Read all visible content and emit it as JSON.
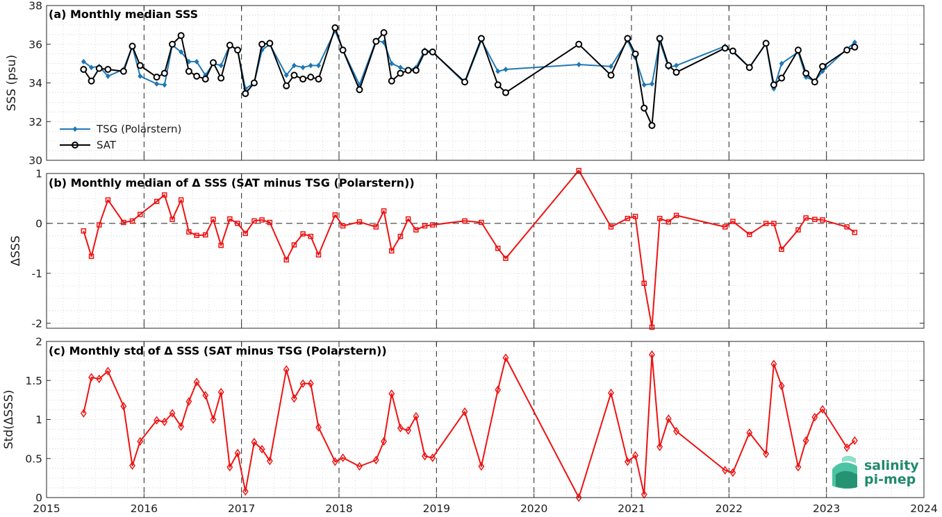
{
  "chart_data": [
    {
      "type": "line",
      "title": "(a) Monthly median SSS",
      "xlabel": "",
      "ylabel": "SSS (psu)",
      "xlim": [
        2015,
        2024
      ],
      "ylim": [
        30,
        38
      ],
      "xticks": [
        2015,
        2016,
        2017,
        2018,
        2019,
        2020,
        2021,
        2022,
        2023,
        2024
      ],
      "yticks": [
        30,
        32,
        34,
        36,
        38
      ],
      "grid": "dotted",
      "legend": "bottom-left",
      "series": [
        {
          "name": "TSG (Polarstern)",
          "color": "#1f77b4",
          "marker": "diamond-filled",
          "x": [
            2015.38,
            2015.46,
            2015.54,
            2015.63,
            2015.79,
            2015.88,
            2015.96,
            2016.13,
            2016.21,
            2016.29,
            2016.38,
            2016.46,
            2016.54,
            2016.63,
            2016.71,
            2016.79,
            2016.88,
            2016.96,
            2017.04,
            2017.13,
            2017.21,
            2017.29,
            2017.46,
            2017.54,
            2017.63,
            2017.71,
            2017.79,
            2017.96,
            2018.04,
            2018.21,
            2018.38,
            2018.46,
            2018.54,
            2018.63,
            2018.71,
            2018.79,
            2018.88,
            2018.96,
            2019.29,
            2019.46,
            2019.63,
            2019.71,
            2020.46,
            2020.79,
            2020.96,
            2021.04,
            2021.13,
            2021.21,
            2021.29,
            2021.38,
            2021.46,
            2021.96,
            2022.04,
            2022.21,
            2022.38,
            2022.46,
            2022.54,
            2022.71,
            2022.79,
            2022.88,
            2022.96,
            2023.21,
            2023.29
          ],
          "y": [
            35.1,
            34.8,
            34.85,
            34.35,
            34.7,
            35.9,
            34.35,
            33.95,
            33.9,
            35.95,
            35.6,
            35.1,
            35.1,
            34.4,
            35.0,
            34.9,
            35.95,
            35.7,
            33.7,
            34.0,
            35.7,
            36.0,
            34.4,
            34.9,
            34.8,
            34.9,
            34.9,
            36.7,
            35.7,
            33.9,
            36.2,
            36.1,
            35.0,
            34.8,
            34.65,
            34.8,
            35.7,
            35.6,
            34.0,
            36.2,
            34.6,
            34.7,
            34.95,
            34.85,
            36.2,
            35.3,
            33.9,
            33.95,
            36.15,
            34.8,
            34.9,
            35.9,
            35.6,
            34.8,
            36.05,
            33.7,
            35.0,
            35.6,
            34.3,
            34.1,
            34.6,
            35.75,
            36.1
          ]
        },
        {
          "name": "SAT",
          "color": "#000000",
          "marker": "circle-open",
          "x": [
            2015.38,
            2015.46,
            2015.54,
            2015.63,
            2015.79,
            2015.88,
            2015.96,
            2016.13,
            2016.21,
            2016.29,
            2016.38,
            2016.46,
            2016.54,
            2016.63,
            2016.71,
            2016.79,
            2016.88,
            2016.96,
            2017.04,
            2017.13,
            2017.21,
            2017.29,
            2017.46,
            2017.54,
            2017.63,
            2017.71,
            2017.79,
            2017.96,
            2018.04,
            2018.21,
            2018.38,
            2018.46,
            2018.54,
            2018.63,
            2018.71,
            2018.79,
            2018.88,
            2018.96,
            2019.29,
            2019.46,
            2019.63,
            2019.71,
            2020.46,
            2020.79,
            2020.96,
            2021.04,
            2021.13,
            2021.21,
            2021.29,
            2021.38,
            2021.46,
            2021.96,
            2022.04,
            2022.21,
            2022.38,
            2022.46,
            2022.54,
            2022.71,
            2022.79,
            2022.88,
            2022.96,
            2023.21,
            2023.29
          ],
          "y": [
            34.7,
            34.1,
            34.75,
            34.7,
            34.6,
            35.9,
            34.9,
            34.3,
            34.5,
            36.0,
            36.45,
            34.6,
            34.35,
            34.2,
            35.05,
            34.25,
            35.95,
            35.7,
            33.45,
            34.0,
            36.0,
            36.05,
            33.85,
            34.4,
            34.2,
            34.3,
            34.2,
            36.85,
            35.7,
            33.65,
            36.15,
            36.6,
            34.1,
            34.5,
            34.65,
            34.65,
            35.6,
            35.6,
            34.05,
            36.3,
            33.9,
            33.5,
            36.0,
            34.4,
            36.3,
            35.5,
            32.7,
            31.8,
            36.3,
            34.9,
            34.55,
            35.8,
            35.65,
            34.8,
            36.05,
            33.9,
            34.25,
            35.7,
            34.5,
            34.05,
            34.85,
            35.7,
            35.85
          ]
        }
      ]
    },
    {
      "type": "line",
      "title": "(b) Monthly median of Δ SSS (SAT minus TSG (Polarstern))",
      "xlabel": "",
      "ylabel": "ΔSSS",
      "xlim": [
        2015,
        2024
      ],
      "ylim": [
        -2.1,
        1.0
      ],
      "xticks": [
        2015,
        2016,
        2017,
        2018,
        2019,
        2020,
        2021,
        2022,
        2023,
        2024
      ],
      "yticks": [
        -2,
        -1,
        0,
        1
      ],
      "grid": "dotted",
      "zero_line": "dashed",
      "series": [
        {
          "color": "#ee1111",
          "marker": "square-open",
          "x": [
            2015.38,
            2015.46,
            2015.54,
            2015.63,
            2015.79,
            2015.88,
            2015.96,
            2016.13,
            2016.21,
            2016.29,
            2016.38,
            2016.46,
            2016.54,
            2016.63,
            2016.71,
            2016.79,
            2016.88,
            2016.96,
            2017.04,
            2017.13,
            2017.21,
            2017.29,
            2017.46,
            2017.54,
            2017.63,
            2017.71,
            2017.79,
            2017.96,
            2018.04,
            2018.21,
            2018.38,
            2018.46,
            2018.54,
            2018.63,
            2018.71,
            2018.79,
            2018.88,
            2018.96,
            2019.29,
            2019.46,
            2019.63,
            2019.71,
            2020.46,
            2020.79,
            2020.96,
            2021.04,
            2021.13,
            2021.21,
            2021.29,
            2021.38,
            2021.46,
            2021.96,
            2022.04,
            2022.21,
            2022.38,
            2022.46,
            2022.54,
            2022.71,
            2022.79,
            2022.88,
            2022.96,
            2023.21,
            2023.29
          ],
          "y": [
            -0.15,
            -0.66,
            -0.03,
            0.47,
            0.02,
            0.05,
            0.18,
            0.44,
            0.57,
            0.08,
            0.47,
            -0.17,
            -0.24,
            -0.23,
            0.08,
            -0.44,
            0.09,
            0.0,
            -0.2,
            0.05,
            0.07,
            0.02,
            -0.73,
            -0.43,
            -0.21,
            -0.26,
            -0.63,
            0.17,
            -0.05,
            0.03,
            -0.07,
            0.25,
            -0.55,
            -0.26,
            0.09,
            -0.13,
            -0.05,
            -0.03,
            0.05,
            0.02,
            -0.5,
            -0.7,
            1.06,
            -0.07,
            0.1,
            0.14,
            -1.2,
            -2.08,
            0.1,
            0.03,
            0.16,
            -0.07,
            0.04,
            -0.22,
            0.0,
            0.0,
            -0.52,
            -0.13,
            0.11,
            0.08,
            0.07,
            -0.07,
            -0.18
          ]
        }
      ]
    },
    {
      "type": "line",
      "title": "(c) Monthly std of Δ SSS (SAT minus TSG (Polarstern))",
      "xlabel": "",
      "ylabel": "Std(ΔSSS)",
      "xlim": [
        2015,
        2024
      ],
      "ylim": [
        0,
        2
      ],
      "xticks": [
        2015,
        2016,
        2017,
        2018,
        2019,
        2020,
        2021,
        2022,
        2023,
        2024
      ],
      "yticks": [
        0,
        0.5,
        1,
        1.5,
        2
      ],
      "grid": "dotted",
      "series": [
        {
          "color": "#ee1111",
          "marker": "diamond-open",
          "x": [
            2015.38,
            2015.46,
            2015.54,
            2015.63,
            2015.79,
            2015.88,
            2015.96,
            2016.13,
            2016.21,
            2016.29,
            2016.38,
            2016.46,
            2016.54,
            2016.63,
            2016.71,
            2016.79,
            2016.88,
            2016.96,
            2017.04,
            2017.13,
            2017.21,
            2017.29,
            2017.46,
            2017.54,
            2017.63,
            2017.71,
            2017.79,
            2017.96,
            2018.04,
            2018.21,
            2018.38,
            2018.46,
            2018.54,
            2018.63,
            2018.71,
            2018.79,
            2018.88,
            2018.96,
            2019.29,
            2019.46,
            2019.63,
            2019.71,
            2020.46,
            2020.79,
            2020.96,
            2021.04,
            2021.13,
            2021.21,
            2021.29,
            2021.38,
            2021.46,
            2021.96,
            2022.04,
            2022.21,
            2022.38,
            2022.46,
            2022.54,
            2022.71,
            2022.79,
            2022.88,
            2022.96,
            2023.21,
            2023.29
          ],
          "y": [
            1.08,
            1.54,
            1.52,
            1.62,
            1.17,
            0.41,
            0.72,
            0.99,
            0.97,
            1.08,
            0.91,
            1.23,
            1.48,
            1.31,
            1.0,
            1.35,
            0.39,
            0.57,
            0.08,
            0.71,
            0.62,
            0.47,
            1.64,
            1.27,
            1.46,
            1.46,
            0.9,
            0.46,
            0.51,
            0.4,
            0.48,
            0.72,
            1.33,
            0.89,
            0.86,
            1.04,
            0.53,
            0.51,
            1.1,
            0.4,
            1.38,
            1.79,
            0.0,
            1.34,
            0.46,
            0.54,
            0.04,
            1.83,
            0.65,
            1.01,
            0.85,
            0.35,
            0.32,
            0.83,
            0.56,
            1.71,
            1.43,
            0.39,
            0.73,
            1.03,
            1.13,
            0.64,
            0.73
          ]
        }
      ]
    }
  ],
  "logo": {
    "line1": "salinity",
    "line2": "pi-mep",
    "colors": [
      "#1f8a6a",
      "#4cc4a4",
      "#8ee0c6"
    ]
  }
}
